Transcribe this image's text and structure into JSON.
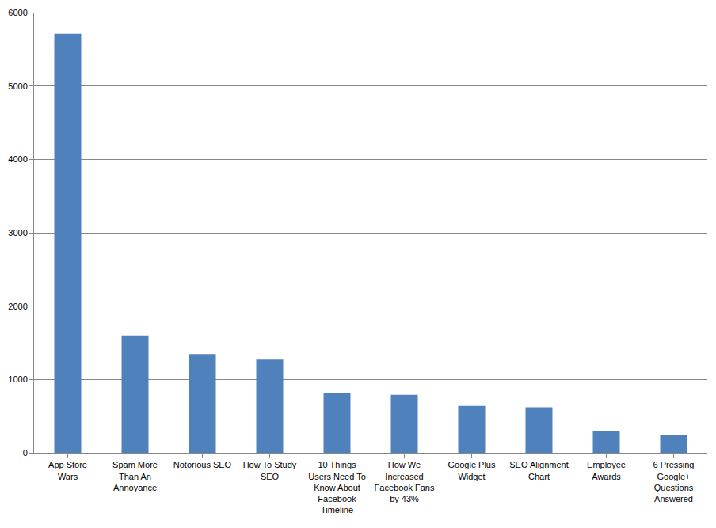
{
  "chart_data": {
    "type": "bar",
    "categories": [
      "App Store Wars",
      "Spam More Than An Annoyance",
      "Notorious SEO",
      "How To Study SEO",
      "10 Things Users Need To Know About Facebook Timeline",
      "How We Increased Facebook Fans by 43%",
      "Google Plus Widget",
      "SEO Alignment Chart",
      "Employee Awards",
      "6 Pressing Google+ Questions Answered"
    ],
    "values": [
      5710,
      1600,
      1345,
      1270,
      810,
      790,
      640,
      620,
      300,
      245
    ],
    "color": "#4f81bd",
    "ylim": [
      0,
      6000
    ],
    "yticks": [
      0,
      1000,
      2000,
      3000,
      4000,
      5000,
      6000
    ],
    "grid": true
  }
}
